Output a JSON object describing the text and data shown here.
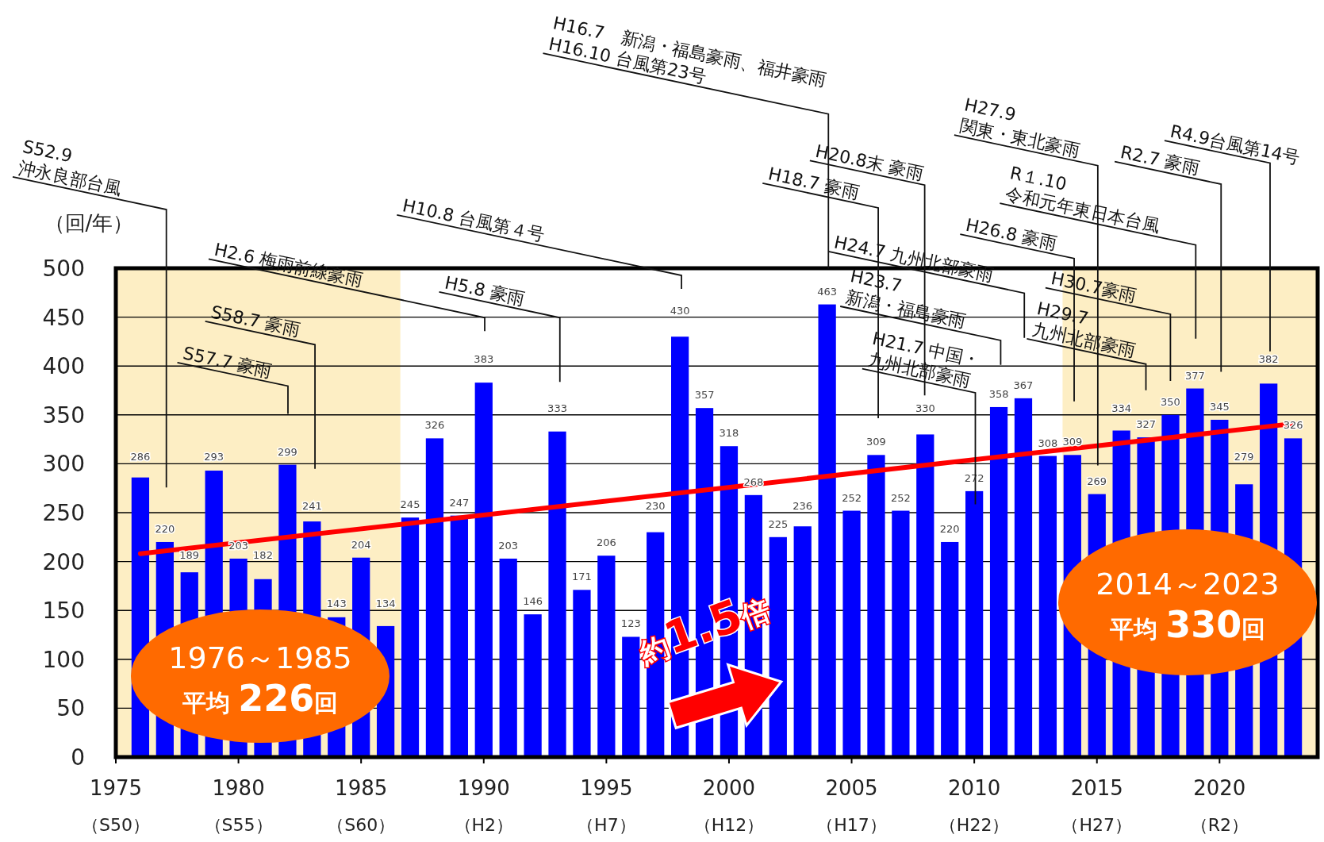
{
  "chart_data": {
    "type": "bar",
    "x": [
      1976,
      1977,
      1978,
      1979,
      1980,
      1981,
      1982,
      1983,
      1984,
      1985,
      1986,
      1987,
      1988,
      1989,
      1990,
      1991,
      1992,
      1993,
      1994,
      1995,
      1996,
      1997,
      1998,
      1999,
      2000,
      2001,
      2002,
      2003,
      2004,
      2005,
      2006,
      2007,
      2008,
      2009,
      2010,
      2011,
      2012,
      2013,
      2014,
      2015,
      2016,
      2017,
      2018,
      2019,
      2020,
      2021,
      2022,
      2023
    ],
    "series": [
      {
        "color": "#0000ff",
        "values": [
          286,
          220,
          189,
          293,
          203,
          182,
          299,
          241,
          143,
          204,
          134,
          245,
          326,
          247,
          383,
          203,
          146,
          333,
          171,
          206,
          123,
          230,
          430,
          357,
          318,
          268,
          225,
          236,
          463,
          252,
          309,
          252,
          330,
          220,
          272,
          358,
          367,
          308,
          309,
          269,
          334,
          327,
          350,
          377,
          345,
          279,
          382,
          326
        ],
        "value_labels": [
          "286",
          "220",
          "189",
          "293",
          "203",
          "182",
          "299",
          "241",
          "143",
          "204",
          "134",
          "245",
          "326",
          "247",
          "383",
          "203",
          "146",
          "333",
          "171",
          "206",
          "123",
          "230",
          "430",
          "357",
          "318",
          "268",
          "225",
          "236",
          "463",
          "252",
          "309",
          "252",
          "330",
          "220",
          "272",
          "358",
          "367",
          "308",
          "309",
          "269",
          "334",
          "327",
          "350",
          "377",
          "345",
          "279",
          "382",
          "326"
        ]
      },
      {
        "type": "line",
        "color": "#ff0000",
        "x": [
          1976,
          2023
        ],
        "values": [
          208,
          341
        ]
      }
    ],
    "xlim": [
      1975,
      2024
    ],
    "ylim": [
      0,
      500
    ],
    "xticks": [
      1975,
      1980,
      1985,
      1990,
      1995,
      2000,
      2005,
      2010,
      2015,
      2020
    ],
    "yticks": [
      0,
      50,
      100,
      150,
      200,
      250,
      300,
      350,
      400,
      450,
      500
    ],
    "ylabel": "（回/年）",
    "grid": "y",
    "bands": [
      {
        "axis": "x",
        "from": 1975,
        "to": 1986.6,
        "color": "#fdeec4"
      },
      {
        "axis": "x",
        "from": 2013.6,
        "to": 2024,
        "color": "#fdeec4"
      }
    ],
    "annotations": [
      "S52.9\n沖永良部台風",
      "S57.7 豪雨",
      "S58.7 豪雨",
      "H2.6 梅雨前線豪雨",
      "H5.8 豪雨",
      "H10.8 台風第４号",
      "H16.7　新潟・福島豪雨、福井豪雨\nH16.10 台風第23号",
      "H18.7 豪雨",
      "H20.8末 豪雨",
      "H21.7 中国・\n九州北部豪雨",
      "H23.7\n新潟・福島豪雨",
      "H24.7 九州北部豪雨",
      "H26.8 豪雨",
      "H27.9\n関東・東北豪雨",
      "H29.7\n九州北部豪雨",
      "H30.7豪雨",
      "R１.10\n令和元年東日本台風",
      "R2.7 豪雨",
      "R4.9台風第14号",
      "1976～1985\n平均 226回",
      "2014～2023\n平均 330回",
      "約1.5倍",
      "（S50）",
      "（S55）",
      "（S60）",
      "（H2）",
      "（H7）",
      "（H12）",
      "（H17）",
      "（H22）",
      "（H27）",
      "（R2）"
    ]
  }
}
